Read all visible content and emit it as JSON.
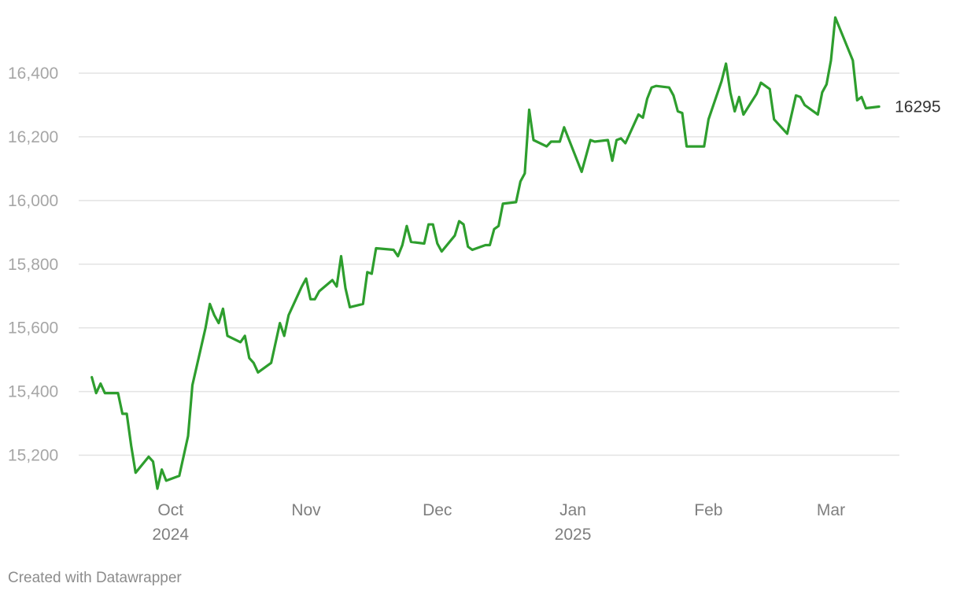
{
  "chart_data": {
    "type": "line",
    "title": "",
    "xlabel": "",
    "ylabel": "",
    "x_range": [
      "2024-09-10",
      "2025-03-10"
    ],
    "ylim": [
      15050,
      16600
    ],
    "y_ticks": [
      15200,
      15400,
      15600,
      15800,
      16000,
      16200,
      16400
    ],
    "y_tick_labels": [
      "15,200",
      "15,400",
      "15,600",
      "15,800",
      "16,000",
      "16,200",
      "16,400"
    ],
    "x_ticks": [
      {
        "date": "2024-10-01",
        "label": "Oct",
        "sublabel": "2024"
      },
      {
        "date": "2024-11-01",
        "label": "Nov",
        "sublabel": ""
      },
      {
        "date": "2024-12-01",
        "label": "Dec",
        "sublabel": ""
      },
      {
        "date": "2025-01-01",
        "label": "Jan",
        "sublabel": "2025"
      },
      {
        "date": "2025-02-01",
        "label": "Feb",
        "sublabel": ""
      },
      {
        "date": "2025-03-01",
        "label": "Mar",
        "sublabel": ""
      }
    ],
    "grid": true,
    "line_color": "#2e9e2e",
    "end_label": "16295",
    "series": [
      {
        "points": [
          [
            "2024-09-13",
            15445
          ],
          [
            "2024-09-14",
            15395
          ],
          [
            "2024-09-15",
            15425
          ],
          [
            "2024-09-16",
            15395
          ],
          [
            "2024-09-19",
            15395
          ],
          [
            "2024-09-20",
            15330
          ],
          [
            "2024-09-21",
            15330
          ],
          [
            "2024-09-22",
            15230
          ],
          [
            "2024-09-23",
            15145
          ],
          [
            "2024-09-26",
            15195
          ],
          [
            "2024-09-27",
            15180
          ],
          [
            "2024-09-28",
            15095
          ],
          [
            "2024-09-29",
            15155
          ],
          [
            "2024-09-30",
            15120
          ],
          [
            "2024-10-03",
            15135
          ],
          [
            "2024-10-05",
            15260
          ],
          [
            "2024-10-06",
            15420
          ],
          [
            "2024-10-09",
            15600
          ],
          [
            "2024-10-10",
            15675
          ],
          [
            "2024-10-11",
            15640
          ],
          [
            "2024-10-12",
            15615
          ],
          [
            "2024-10-13",
            15660
          ],
          [
            "2024-10-14",
            15575
          ],
          [
            "2024-10-17",
            15555
          ],
          [
            "2024-10-18",
            15575
          ],
          [
            "2024-10-19",
            15505
          ],
          [
            "2024-10-20",
            15490
          ],
          [
            "2024-10-21",
            15460
          ],
          [
            "2024-10-24",
            15490
          ],
          [
            "2024-10-26",
            15615
          ],
          [
            "2024-10-27",
            15575
          ],
          [
            "2024-10-28",
            15640
          ],
          [
            "2024-10-31",
            15730
          ],
          [
            "2024-11-01",
            15755
          ],
          [
            "2024-11-02",
            15690
          ],
          [
            "2024-11-03",
            15690
          ],
          [
            "2024-11-04",
            15715
          ],
          [
            "2024-11-07",
            15750
          ],
          [
            "2024-11-08",
            15730
          ],
          [
            "2024-11-09",
            15825
          ],
          [
            "2024-11-10",
            15725
          ],
          [
            "2024-11-11",
            15665
          ],
          [
            "2024-11-14",
            15675
          ],
          [
            "2024-11-15",
            15775
          ],
          [
            "2024-11-16",
            15770
          ],
          [
            "2024-11-17",
            15850
          ],
          [
            "2024-11-21",
            15845
          ],
          [
            "2024-11-22",
            15825
          ],
          [
            "2024-11-23",
            15860
          ],
          [
            "2024-11-24",
            15920
          ],
          [
            "2024-11-25",
            15870
          ],
          [
            "2024-11-28",
            15865
          ],
          [
            "2024-11-29",
            15925
          ],
          [
            "2024-11-30",
            15925
          ],
          [
            "2024-12-01",
            15865
          ],
          [
            "2024-12-02",
            15840
          ],
          [
            "2024-12-05",
            15890
          ],
          [
            "2024-12-06",
            15935
          ],
          [
            "2024-12-07",
            15925
          ],
          [
            "2024-12-08",
            15855
          ],
          [
            "2024-12-09",
            15845
          ],
          [
            "2024-12-12",
            15860
          ],
          [
            "2024-12-13",
            15860
          ],
          [
            "2024-12-14",
            15910
          ],
          [
            "2024-12-15",
            15920
          ],
          [
            "2024-12-16",
            15990
          ],
          [
            "2024-12-19",
            15995
          ],
          [
            "2024-12-20",
            16060
          ],
          [
            "2024-12-21",
            16085
          ],
          [
            "2024-12-22",
            16285
          ],
          [
            "2024-12-23",
            16190
          ],
          [
            "2024-12-26",
            16170
          ],
          [
            "2024-12-27",
            16185
          ],
          [
            "2024-12-29",
            16185
          ],
          [
            "2024-12-30",
            16230
          ],
          [
            "2025-01-03",
            16090
          ],
          [
            "2025-01-05",
            16190
          ],
          [
            "2025-01-06",
            16185
          ],
          [
            "2025-01-09",
            16190
          ],
          [
            "2025-01-10",
            16125
          ],
          [
            "2025-01-11",
            16190
          ],
          [
            "2025-01-12",
            16195
          ],
          [
            "2025-01-13",
            16180
          ],
          [
            "2025-01-16",
            16270
          ],
          [
            "2025-01-17",
            16260
          ],
          [
            "2025-01-18",
            16320
          ],
          [
            "2025-01-19",
            16355
          ],
          [
            "2025-01-20",
            16360
          ],
          [
            "2025-01-23",
            16355
          ],
          [
            "2025-01-24",
            16330
          ],
          [
            "2025-01-25",
            16280
          ],
          [
            "2025-01-26",
            16275
          ],
          [
            "2025-01-27",
            16170
          ],
          [
            "2025-01-31",
            16170
          ],
          [
            "2025-02-01",
            16255
          ],
          [
            "2025-02-04",
            16375
          ],
          [
            "2025-02-05",
            16430
          ],
          [
            "2025-02-06",
            16340
          ],
          [
            "2025-02-07",
            16280
          ],
          [
            "2025-02-08",
            16325
          ],
          [
            "2025-02-09",
            16270
          ],
          [
            "2025-02-12",
            16335
          ],
          [
            "2025-02-13",
            16370
          ],
          [
            "2025-02-15",
            16350
          ],
          [
            "2025-02-16",
            16255
          ],
          [
            "2025-02-19",
            16210
          ],
          [
            "2025-02-21",
            16330
          ],
          [
            "2025-02-22",
            16325
          ],
          [
            "2025-02-23",
            16300
          ],
          [
            "2025-02-26",
            16270
          ],
          [
            "2025-02-27",
            16340
          ],
          [
            "2025-02-28",
            16365
          ],
          [
            "2025-03-01",
            16440
          ],
          [
            "2025-03-02",
            16575
          ],
          [
            "2025-03-06",
            16440
          ],
          [
            "2025-03-07",
            16315
          ],
          [
            "2025-03-08",
            16325
          ],
          [
            "2025-03-09",
            16290
          ],
          [
            "2025-03-12",
            16295
          ]
        ]
      }
    ]
  },
  "footer": {
    "credit": "Created with Datawrapper"
  }
}
